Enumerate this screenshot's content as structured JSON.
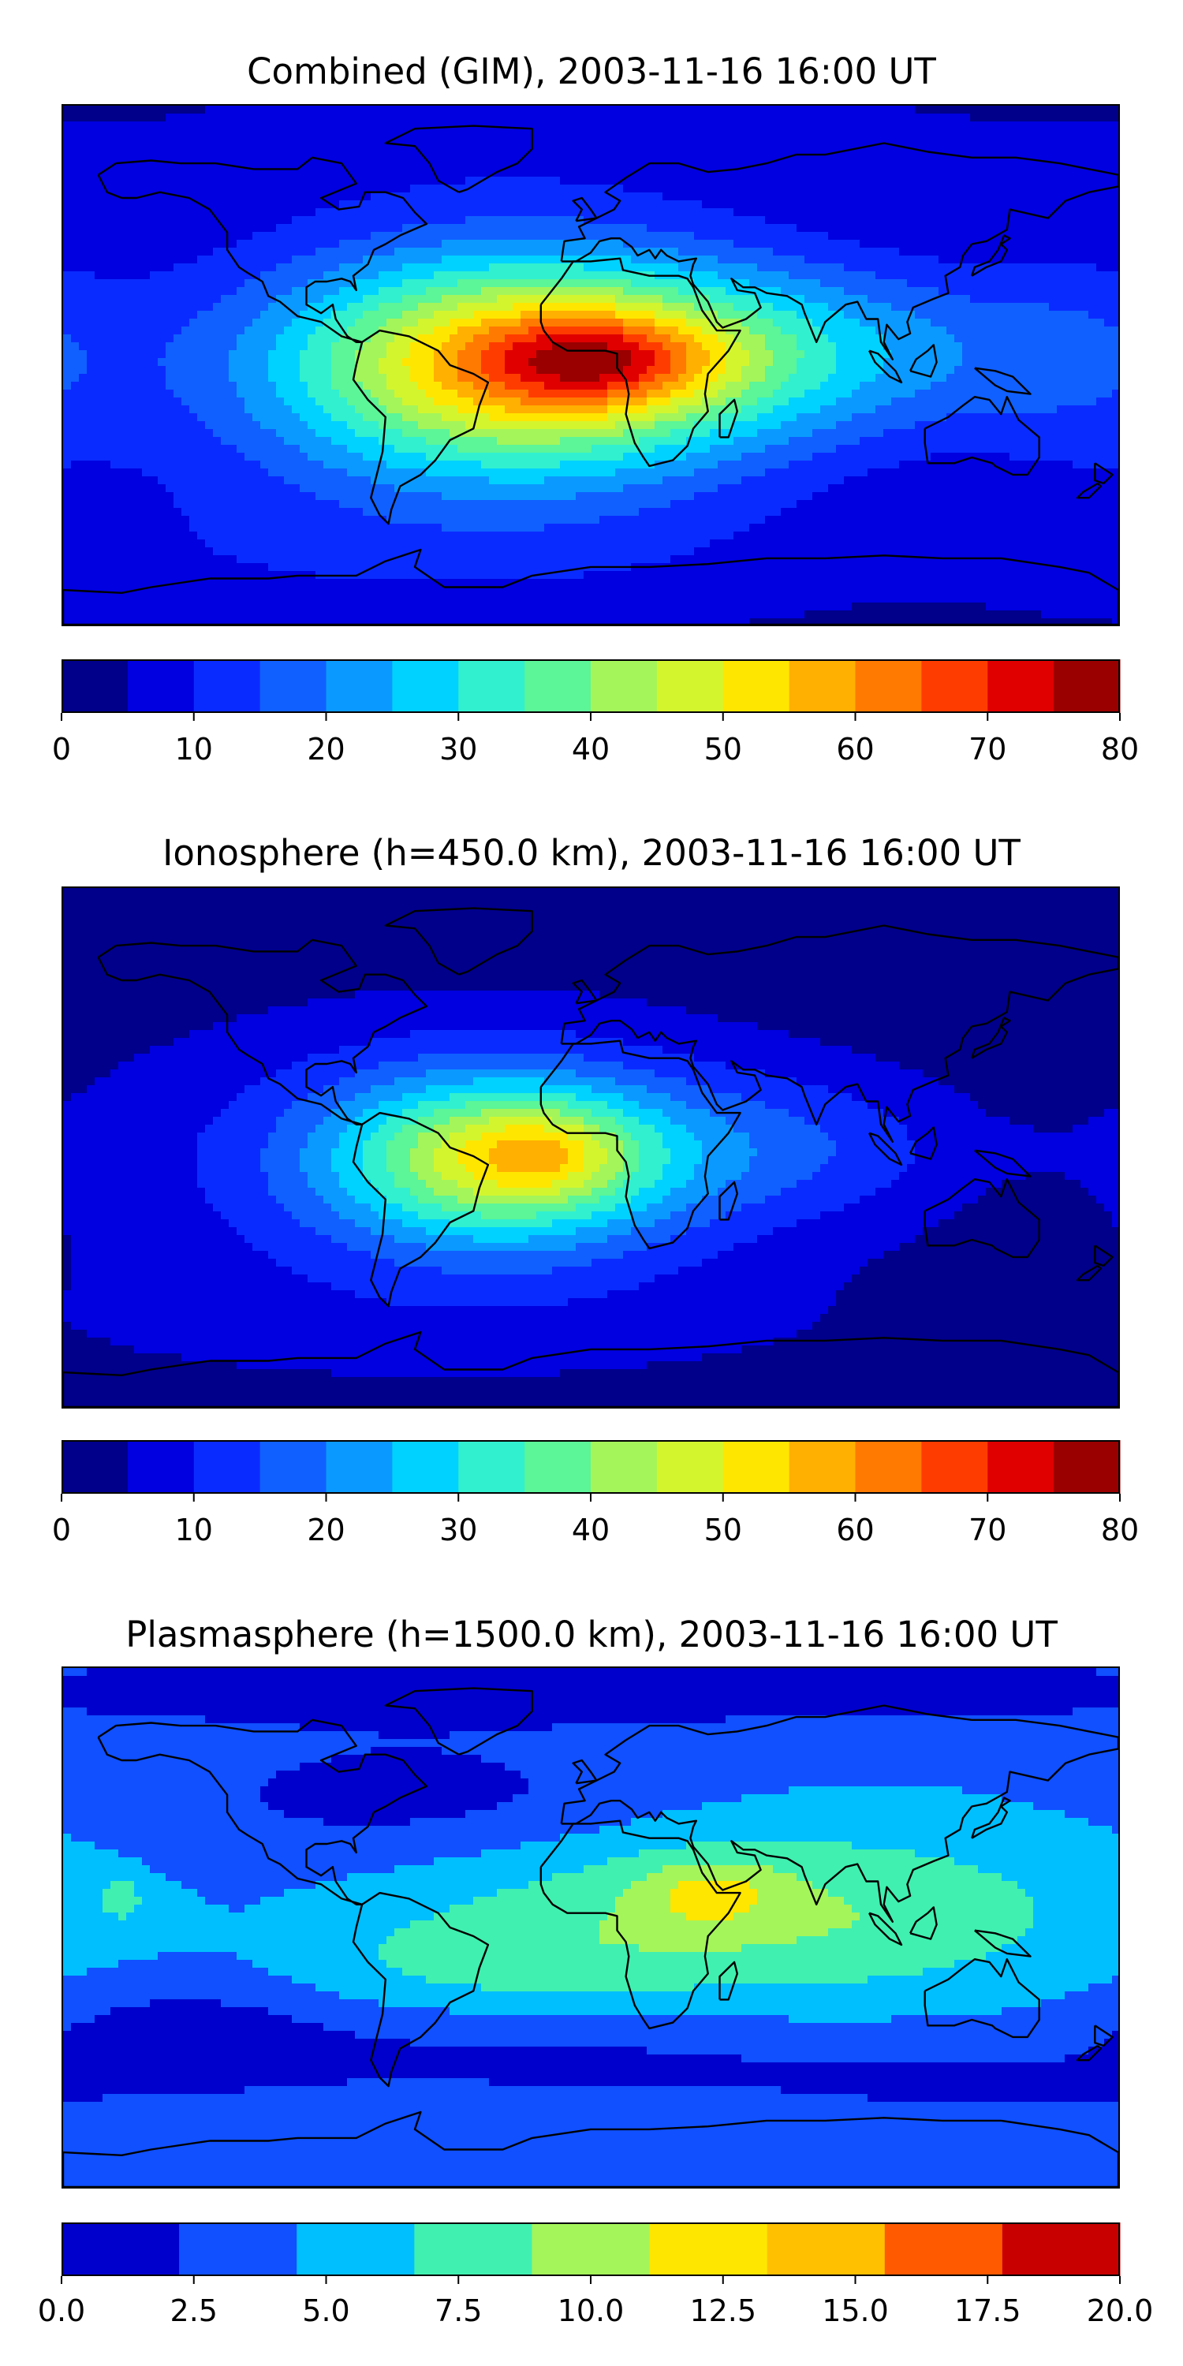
{
  "chart_data": [
    {
      "type": "heatmap",
      "title": "Combined (GIM), 2003-11-16 16:00 UT",
      "xlabel": "",
      "ylabel": "",
      "colorbar": {
        "levels": [
          0,
          5,
          10,
          15,
          20,
          25,
          30,
          35,
          40,
          45,
          50,
          55,
          60,
          65,
          70,
          75,
          80
        ],
        "colors": [
          "#00008b",
          "#0000e0",
          "#0a2bff",
          "#1060ff",
          "#0a9aff",
          "#00d2ff",
          "#30f0d0",
          "#5cf598",
          "#a4f55a",
          "#d3f52e",
          "#ffe600",
          "#ffb000",
          "#ff7a00",
          "#ff3c00",
          "#e00000",
          "#9a0000"
        ],
        "tick_labels": [
          "0",
          "10",
          "20",
          "30",
          "40",
          "50",
          "60",
          "70",
          "80"
        ]
      },
      "field": {
        "background": 1,
        "features": [
          {
            "lon": -48,
            "lat": -3,
            "lon_sigma": 110,
            "lat_sigma": 48,
            "value": 11.5
          },
          {
            "lon": -25,
            "lat": 0,
            "lon_sigma": 55,
            "lat_sigma": 26,
            "value": 45
          },
          {
            "lon": 5,
            "lat": 2,
            "lon_sigma": 28,
            "lat_sigma": 11,
            "value": 20
          },
          {
            "lon": 75,
            "lat": 5,
            "lon_sigma": 60,
            "lat_sigma": 22,
            "value": 17
          },
          {
            "lon": 160,
            "lat": 0,
            "lon_sigma": 30,
            "lat_sigma": 30,
            "value": 6
          },
          {
            "lon": 30,
            "lat": 80,
            "lon_sigma": 200,
            "lat_sigma": 18,
            "value": 4
          },
          {
            "lon": -90,
            "lat": -70,
            "lon_sigma": 200,
            "lat_sigma": 20,
            "value": 5
          }
        ]
      }
    },
    {
      "type": "heatmap",
      "title": "Ionosphere  (h=450.0 km), 2003-11-16 16:00 UT",
      "xlabel": "",
      "ylabel": "",
      "colorbar": {
        "levels": [
          0,
          5,
          10,
          15,
          20,
          25,
          30,
          35,
          40,
          45,
          50,
          55,
          60,
          65,
          70,
          75,
          80
        ],
        "colors": [
          "#00008b",
          "#0000e0",
          "#0a2bff",
          "#1060ff",
          "#0a9aff",
          "#00d2ff",
          "#30f0d0",
          "#5cf598",
          "#a4f55a",
          "#d3f52e",
          "#ffe600",
          "#ffb000",
          "#ff7a00",
          "#ff3c00",
          "#e00000",
          "#9a0000"
        ],
        "tick_labels": [
          "0",
          "10",
          "20",
          "30",
          "40",
          "50",
          "60",
          "70",
          "80"
        ]
      },
      "field": {
        "background": 0.5,
        "features": [
          {
            "lon": -45,
            "lat": -5,
            "lon_sigma": 95,
            "lat_sigma": 40,
            "value": 13
          },
          {
            "lon": -30,
            "lat": -4,
            "lon_sigma": 40,
            "lat_sigma": 20,
            "value": 36
          },
          {
            "lon": -15,
            "lat": -2,
            "lon_sigma": 18,
            "lat_sigma": 10,
            "value": 10
          },
          {
            "lon": 70,
            "lat": 0,
            "lon_sigma": 45,
            "lat_sigma": 18,
            "value": 9
          },
          {
            "lon": -80,
            "lat": -65,
            "lon_sigma": 220,
            "lat_sigma": 18,
            "value": 3
          }
        ]
      }
    },
    {
      "type": "heatmap",
      "title": "Plasmasphere (h=1500.0 km), 2003-11-16 16:00 UT",
      "xlabel": "",
      "ylabel": "",
      "colorbar": {
        "levels": [
          0,
          2.5,
          5,
          7.5,
          10,
          12.5,
          15,
          17.5,
          20
        ],
        "colors": [
          "#0000cc",
          "#1050ff",
          "#00bfff",
          "#40f0b0",
          "#a4f55a",
          "#ffe600",
          "#ffc000",
          "#ff5a00",
          "#c80000"
        ],
        "tick_labels": [
          "0.0",
          "2.5",
          "5.0",
          "7.5",
          "10.0",
          "12.5",
          "15.0",
          "17.5",
          "20.0"
        ]
      },
      "field": {
        "background": 4.4,
        "features": [
          {
            "lon": 60,
            "lat": 5,
            "lon_sigma": 80,
            "lat_sigma": 22,
            "value": 6
          },
          {
            "lon": 40,
            "lat": 12,
            "lon_sigma": 16,
            "lat_sigma": 8,
            "value": 4
          },
          {
            "lon": -40,
            "lat": -12,
            "lon_sigma": 45,
            "lat_sigma": 12,
            "value": 2.6
          },
          {
            "lon": -60,
            "lat": 45,
            "lon_sigma": 60,
            "lat_sigma": 15,
            "value": -3
          },
          {
            "lon": -140,
            "lat": -35,
            "lon_sigma": 35,
            "lat_sigma": 12,
            "value": -2.8
          },
          {
            "lon": -20,
            "lat": -45,
            "lon_sigma": 80,
            "lat_sigma": 12,
            "value": -2.5
          },
          {
            "lon": 140,
            "lat": -55,
            "lon_sigma": 70,
            "lat_sigma": 12,
            "value": -2
          },
          {
            "lon": 0,
            "lat": 82,
            "lon_sigma": 250,
            "lat_sigma": 10,
            "value": -3
          },
          {
            "lon": -160,
            "lat": 10,
            "lon_sigma": 5,
            "lat_sigma": 5,
            "value": 4
          }
        ]
      }
    }
  ]
}
